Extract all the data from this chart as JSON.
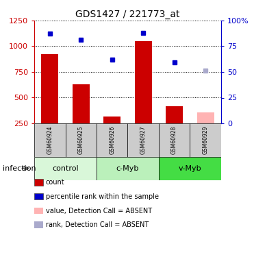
{
  "title": "GDS1427 / 221773_at",
  "samples": [
    "GSM60924",
    "GSM60925",
    "GSM60926",
    "GSM60927",
    "GSM60928",
    "GSM60929"
  ],
  "bar_values": [
    920,
    630,
    320,
    1050,
    420,
    360
  ],
  "bar_colors": [
    "#cc0000",
    "#cc0000",
    "#cc0000",
    "#cc0000",
    "#cc0000",
    "#ffb3b3"
  ],
  "dot_values": [
    1120,
    1060,
    870,
    1130,
    845,
    760
  ],
  "dot_colors": [
    "#0000cc",
    "#0000cc",
    "#0000cc",
    "#0000cc",
    "#0000cc",
    "#aaaacc"
  ],
  "ylim_left": [
    250,
    1250
  ],
  "ylim_right": [
    0,
    100
  ],
  "yticks_left": [
    250,
    500,
    750,
    1000,
    1250
  ],
  "yticks_right": [
    0,
    25,
    50,
    75,
    100
  ],
  "ytick_labels_left": [
    "250",
    "500",
    "750",
    "1000",
    "1250"
  ],
  "ytick_labels_right": [
    "0",
    "25",
    "50",
    "75",
    "100%"
  ],
  "groups": [
    {
      "label": "control",
      "indices": [
        0,
        1
      ],
      "color": "#d9f7d9"
    },
    {
      "label": "c-Myb",
      "indices": [
        2,
        3
      ],
      "color": "#bbf0bb"
    },
    {
      "label": "v-Myb",
      "indices": [
        4,
        5
      ],
      "color": "#44dd44"
    }
  ],
  "infection_label": "infection",
  "left_axis_color": "#cc0000",
  "right_axis_color": "#0000cc",
  "bar_bottom": 250,
  "background_sample_row": "#cccccc",
  "legend_items": [
    {
      "color": "#cc0000",
      "label": "count",
      "marker": "s"
    },
    {
      "color": "#0000cc",
      "label": "percentile rank within the sample",
      "marker": "s"
    },
    {
      "color": "#ffb3b3",
      "label": "value, Detection Call = ABSENT",
      "marker": "s"
    },
    {
      "color": "#aaaacc",
      "label": "rank, Detection Call = ABSENT",
      "marker": "s"
    }
  ]
}
